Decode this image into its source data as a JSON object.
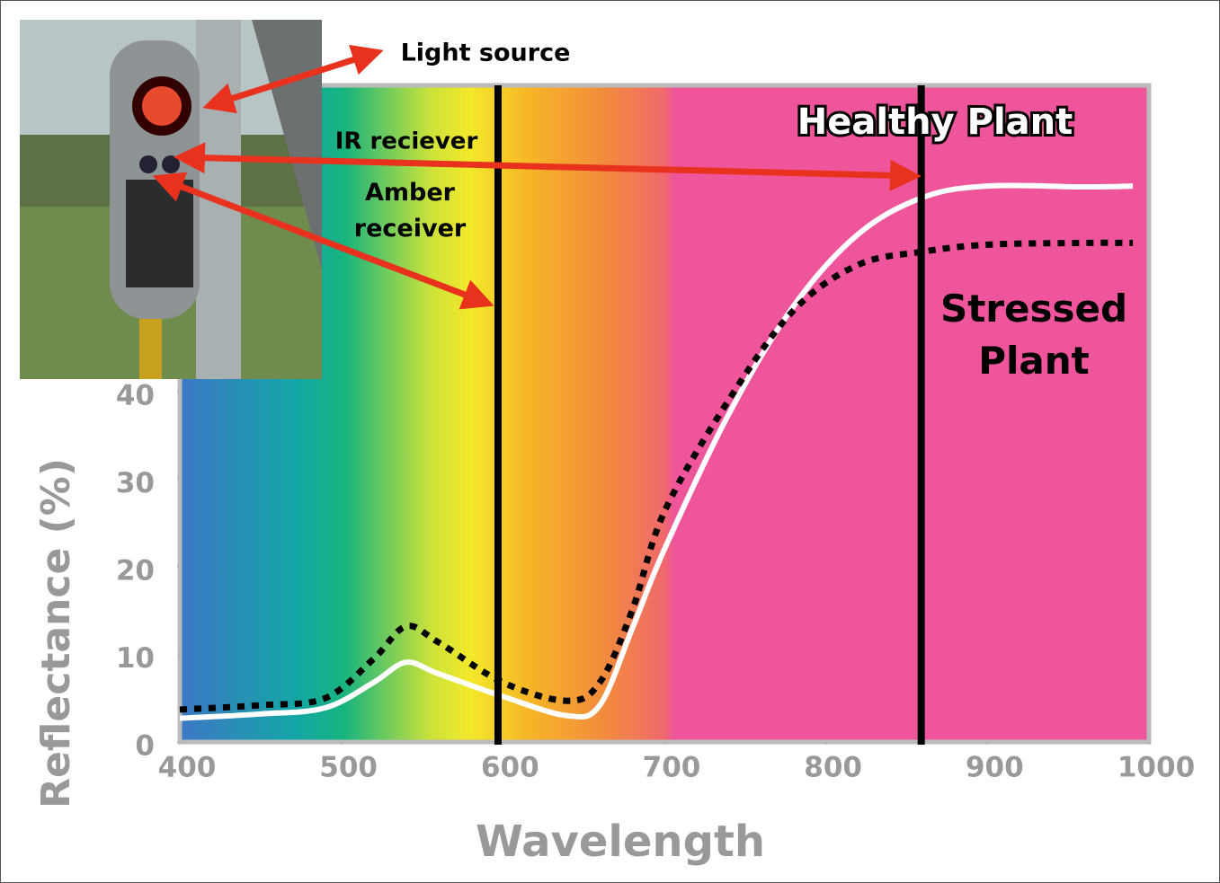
{
  "chart_data": {
    "type": "line",
    "xlabel": "Wavelength",
    "ylabel": "Reflectance (%)",
    "x": [
      400,
      450,
      490,
      520,
      540,
      560,
      600,
      640,
      660,
      680,
      700,
      740,
      780,
      820,
      860,
      900,
      960,
      990
    ],
    "series": [
      {
        "name": "Healthy Plant",
        "color": "#ffffff",
        "style": "solid",
        "values": [
          2.7,
          3.2,
          3.9,
          6.8,
          9.1,
          7.8,
          5.2,
          3.0,
          4.2,
          12.9,
          22,
          37.5,
          49.8,
          58,
          62.2,
          63.5,
          63.4,
          63.5
        ]
      },
      {
        "name": "Stressed Plant",
        "color": "#000000",
        "style": "dotted",
        "values": [
          3.7,
          4.2,
          5.0,
          9.5,
          13.2,
          11.4,
          6.8,
          4.7,
          6.8,
          15,
          26.3,
          39.1,
          49.3,
          54.5,
          56,
          56.8,
          57,
          57
        ]
      }
    ],
    "vlines": [
      597,
      859
    ],
    "vline_color": "#000000",
    "annotations": [
      "Light source",
      "IR reciever",
      "Amber receiver"
    ],
    "xlim": [
      400,
      1000
    ],
    "ylim": [
      0,
      75
    ],
    "xticks": [
      400,
      500,
      600,
      700,
      800,
      900,
      1000
    ],
    "yticks": [
      0,
      10,
      20,
      30,
      40
    ]
  }
}
